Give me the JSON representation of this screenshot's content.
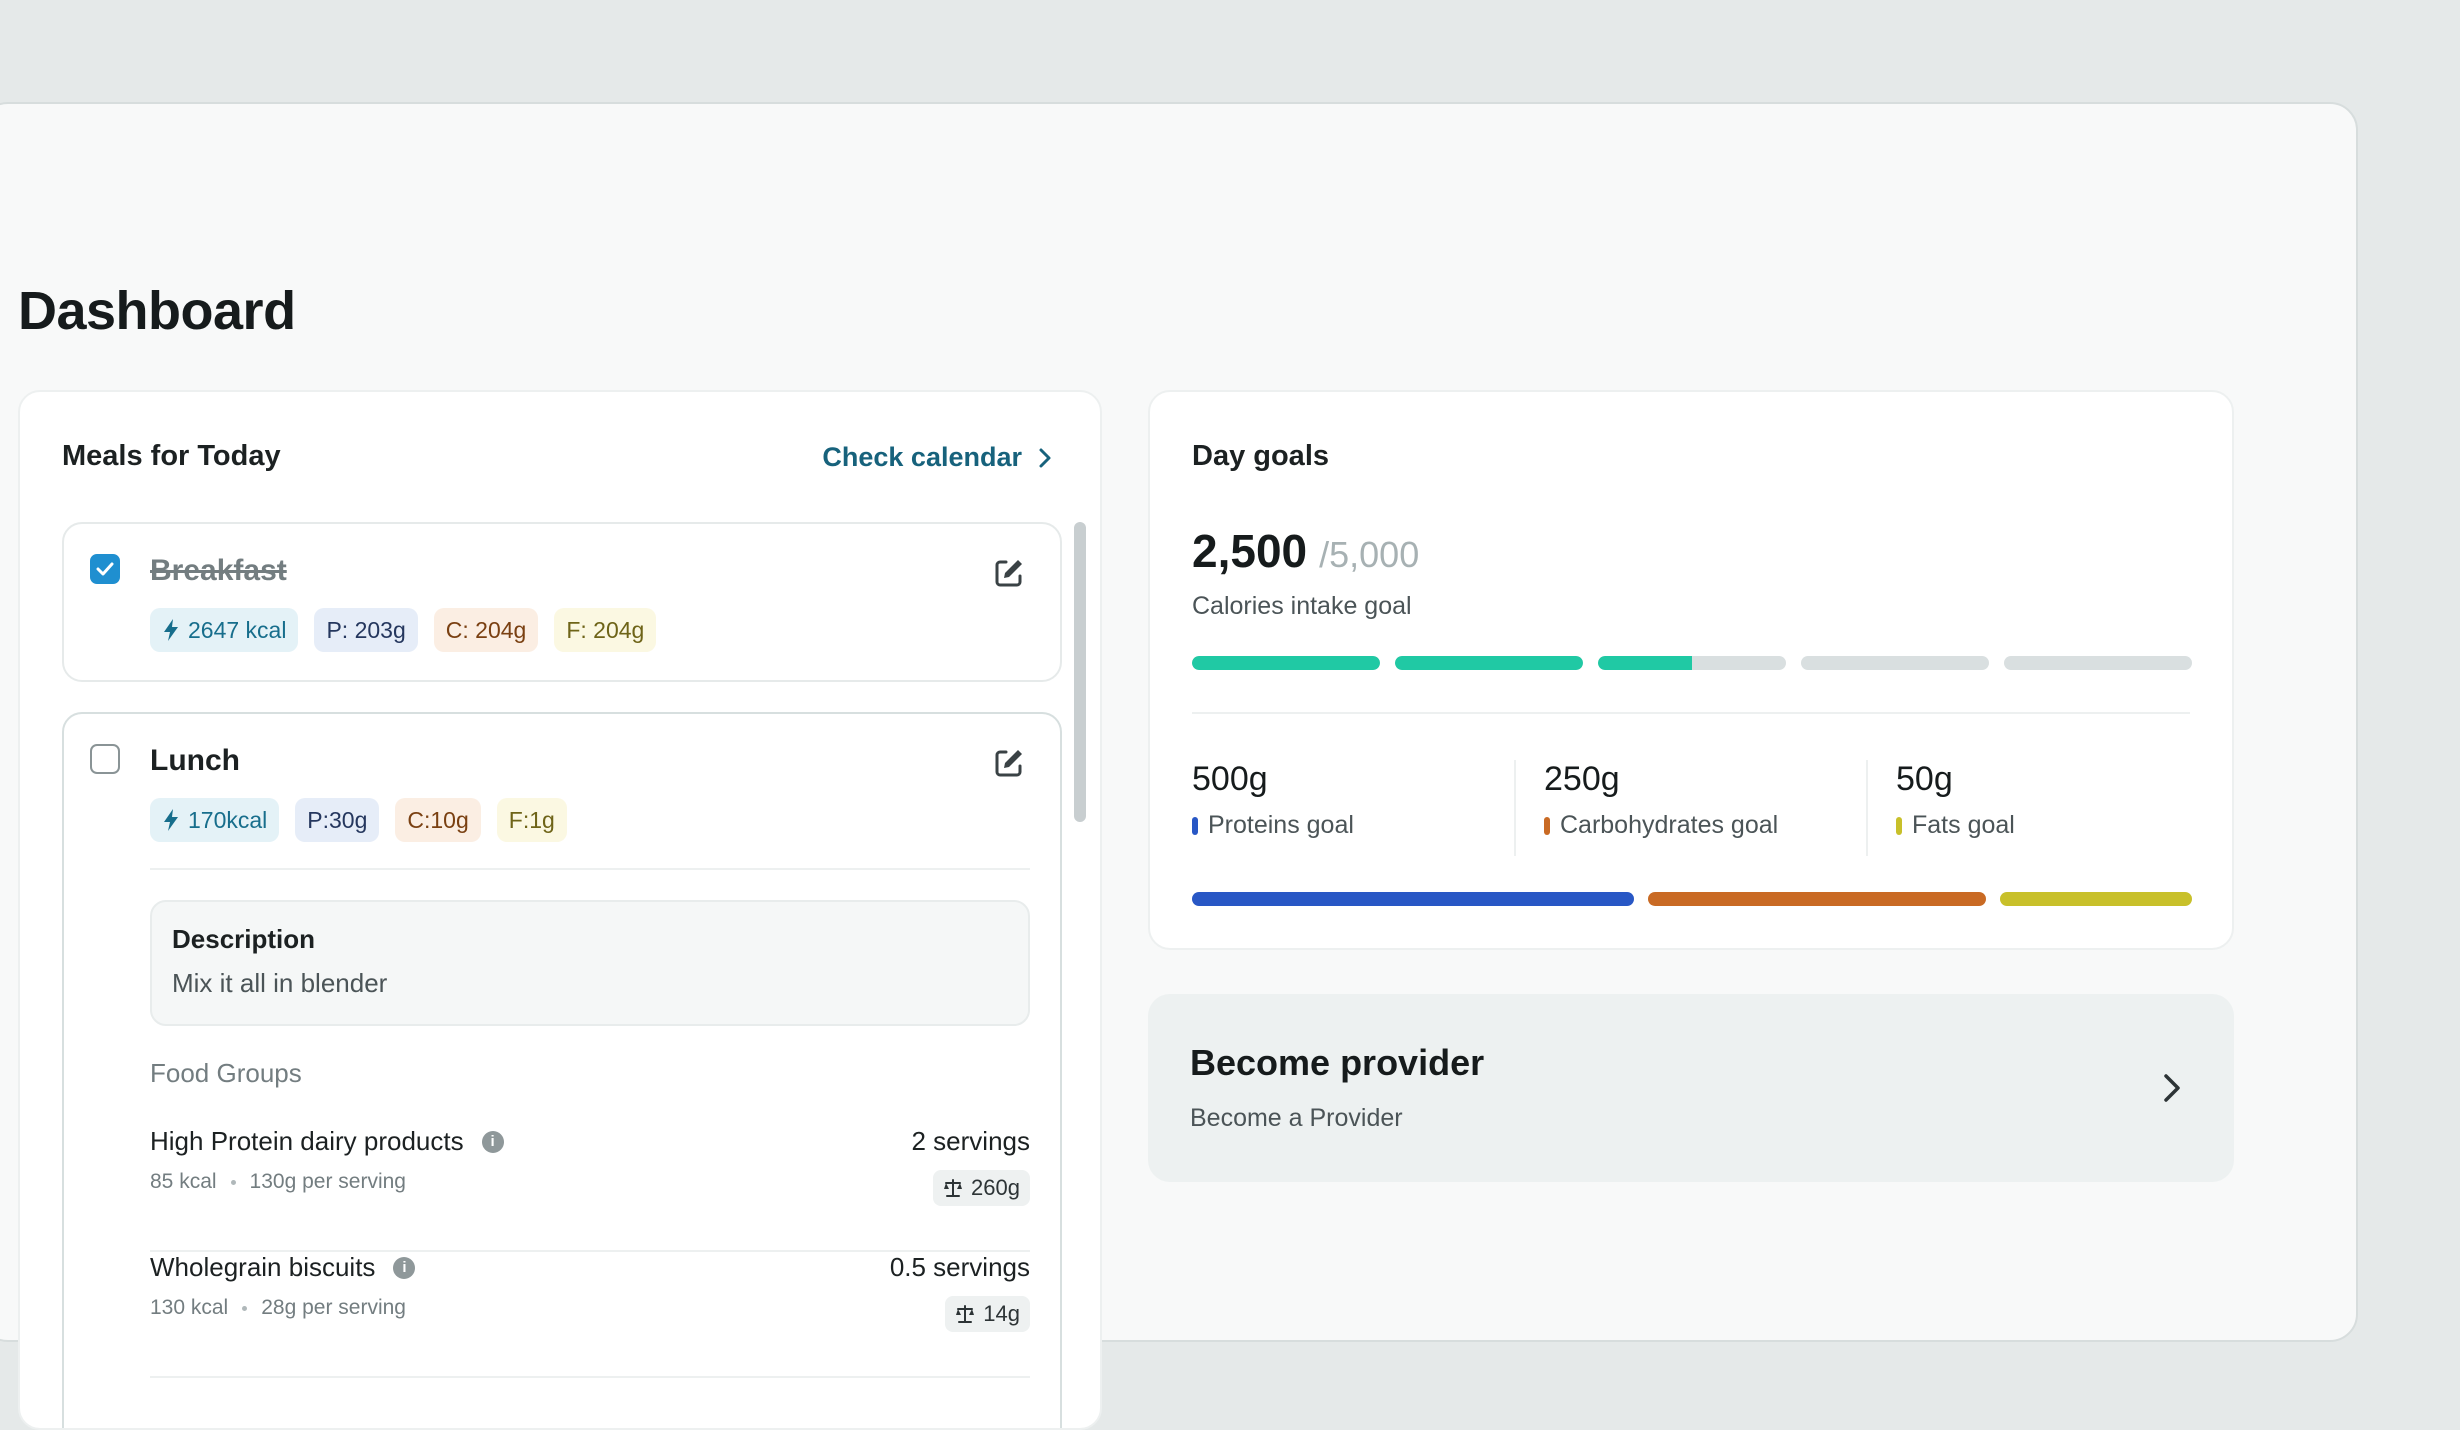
{
  "page": {
    "title": "Dashboard"
  },
  "meals": {
    "title": "Meals for Today",
    "calendar_link": "Check calendar",
    "items": [
      {
        "name": "Breakfast",
        "checked": true,
        "chips": {
          "kcal": "2647 kcal",
          "protein": "P: 203g",
          "carbs": "C: 204g",
          "fat": "F: 204g"
        }
      },
      {
        "name": "Lunch",
        "checked": false,
        "chips": {
          "kcal": "170kcal",
          "protein": "P:30g",
          "carbs": "C:10g",
          "fat": "F:1g"
        },
        "description_title": "Description",
        "description": "Mix it all in blender",
        "food_groups_label": "Food Groups",
        "foods": [
          {
            "name": "High Protein dairy products",
            "kcal": "85 kcal",
            "per_serving": "130g per serving",
            "servings": "2 servings",
            "weight": "260g"
          },
          {
            "name": "Wholegrain biscuits",
            "kcal": "130 kcal",
            "per_serving": "28g per serving",
            "servings": "0.5 servings",
            "weight": "14g"
          }
        ]
      }
    ]
  },
  "goals": {
    "title": "Day goals",
    "calories_current": "2,500",
    "calories_total": "/5,000",
    "calories_label": "Calories intake goal",
    "calories_progress_fraction": 0.5,
    "macros": [
      {
        "value": "500g",
        "label": "Proteins goal",
        "color": "#2857c5"
      },
      {
        "value": "250g",
        "label": "Carbohydrates goal",
        "color": "#c96a24"
      },
      {
        "value": "50g",
        "label": "Fats goal",
        "color": "#c8c02a"
      }
    ],
    "progress_color": "#20c9a4"
  },
  "provider": {
    "title": "Become provider",
    "subtitle": "Become a Provider"
  },
  "icons": {
    "check": "check-icon",
    "edit": "edit-icon",
    "bolt": "bolt-icon",
    "info": "info-icon",
    "scale": "scale-icon",
    "chevron": "chevron-right-icon"
  }
}
